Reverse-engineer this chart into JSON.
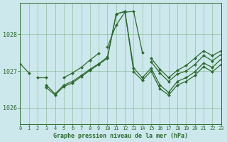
{
  "bg_color": "#cce8ec",
  "grid_color": "#4a8a4a",
  "line_color": "#2d6a2d",
  "xlabel": "Graphe pression niveau de la mer (hPa)",
  "xlim": [
    0,
    23
  ],
  "ylim": [
    1025.55,
    1028.85
  ],
  "yticks": [
    1026,
    1027,
    1028
  ],
  "xticks": [
    0,
    1,
    2,
    3,
    4,
    5,
    6,
    7,
    8,
    9,
    10,
    11,
    12,
    13,
    14,
    15,
    16,
    17,
    18,
    19,
    20,
    21,
    22,
    23
  ],
  "series": [
    [
      1027.2,
      1026.95,
      null,
      null,
      null,
      null,
      null,
      null,
      null,
      null,
      1027.65,
      1028.25,
      1028.6,
      1028.62,
      1027.5,
      null,
      null,
      null,
      null,
      null,
      null,
      null,
      null,
      null
    ],
    [
      null,
      null,
      null,
      null,
      null,
      1026.82,
      1026.95,
      1027.1,
      1027.3,
      1027.48,
      null,
      null,
      null,
      null,
      null,
      1027.35,
      1027.05,
      1026.82,
      1027.02,
      1027.15,
      1027.35,
      1027.55,
      1027.42,
      1027.55
    ],
    [
      null,
      null,
      1026.82,
      1026.82,
      null,
      null,
      null,
      null,
      null,
      null,
      null,
      null,
      null,
      null,
      null,
      null,
      null,
      null,
      null,
      null,
      null,
      null,
      null,
      null
    ],
    [
      null,
      null,
      null,
      1026.62,
      1026.38,
      1026.62,
      1026.72,
      1026.88,
      1027.05,
      1027.2,
      1027.38,
      1028.55,
      1028.62,
      1027.08,
      1026.82,
      1027.08,
      1026.62,
      1026.42,
      1026.72,
      1026.82,
      1026.98,
      1027.22,
      1027.1,
      1027.32
    ],
    [
      null,
      null,
      null,
      1026.55,
      1026.35,
      1026.58,
      1026.68,
      1026.85,
      1027.02,
      1027.18,
      1027.35,
      1028.55,
      1028.62,
      1026.98,
      1026.75,
      1027.0,
      1026.52,
      1026.35,
      1026.62,
      1026.72,
      1026.88,
      1027.12,
      1026.98,
      1027.18
    ],
    [
      null,
      null,
      null,
      null,
      null,
      null,
      null,
      null,
      null,
      null,
      null,
      null,
      null,
      null,
      null,
      1027.25,
      1026.95,
      1026.72,
      1026.92,
      1027.0,
      1027.18,
      1027.42,
      1027.28,
      1027.45
    ]
  ]
}
